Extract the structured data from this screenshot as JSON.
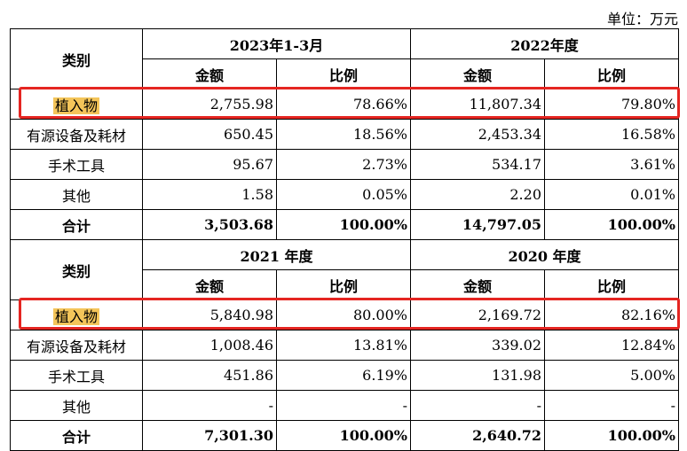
{
  "unit_label": "单位：万元",
  "header_label": "类别",
  "amount_label": "金额",
  "ratio_label": "比例",
  "section1": {
    "period_a": "2023年1-3月",
    "period_b": "2022年度",
    "rows": [
      {
        "category": "植入物",
        "a_amount": "2,755.98",
        "a_ratio": "78.66%",
        "b_amount": "11,807.34",
        "b_ratio": "79.80%",
        "highlight": true
      },
      {
        "category": "有源设备及耗材",
        "a_amount": "650.45",
        "a_ratio": "18.56%",
        "b_amount": "2,453.34",
        "b_ratio": "16.58%"
      },
      {
        "category": "手术工具",
        "a_amount": "95.67",
        "a_ratio": "2.73%",
        "b_amount": "534.17",
        "b_ratio": "3.61%"
      },
      {
        "category": "其他",
        "a_amount": "1.58",
        "a_ratio": "0.05%",
        "b_amount": "2.20",
        "b_ratio": "0.01%"
      },
      {
        "category": "合计",
        "a_amount": "3,503.68",
        "a_ratio": "100.00%",
        "b_amount": "14,797.05",
        "b_ratio": "100.00%",
        "total": true
      }
    ]
  },
  "section2": {
    "period_a": "2021 年度",
    "period_b": "2020 年度",
    "rows": [
      {
        "category": "植入物",
        "a_amount": "5,840.98",
        "a_ratio": "80.00%",
        "b_amount": "2,169.72",
        "b_ratio": "82.16%",
        "highlight": true
      },
      {
        "category": "有源设备及耗材",
        "a_amount": "1,008.46",
        "a_ratio": "13.81%",
        "b_amount": "339.02",
        "b_ratio": "12.84%"
      },
      {
        "category": "手术工具",
        "a_amount": "451.86",
        "a_ratio": "6.19%",
        "b_amount": "131.98",
        "b_ratio": "5.00%"
      },
      {
        "category": "其他",
        "a_amount": "-",
        "a_ratio": "-",
        "b_amount": "-",
        "b_ratio": "-"
      },
      {
        "category": "合计",
        "a_amount": "7,301.30",
        "a_ratio": "100.00%",
        "b_amount": "2,640.72",
        "b_ratio": "100.00%",
        "total": true
      }
    ]
  },
  "colors": {
    "highlight": "#f4c55a",
    "annotation_box": "#e52521"
  }
}
